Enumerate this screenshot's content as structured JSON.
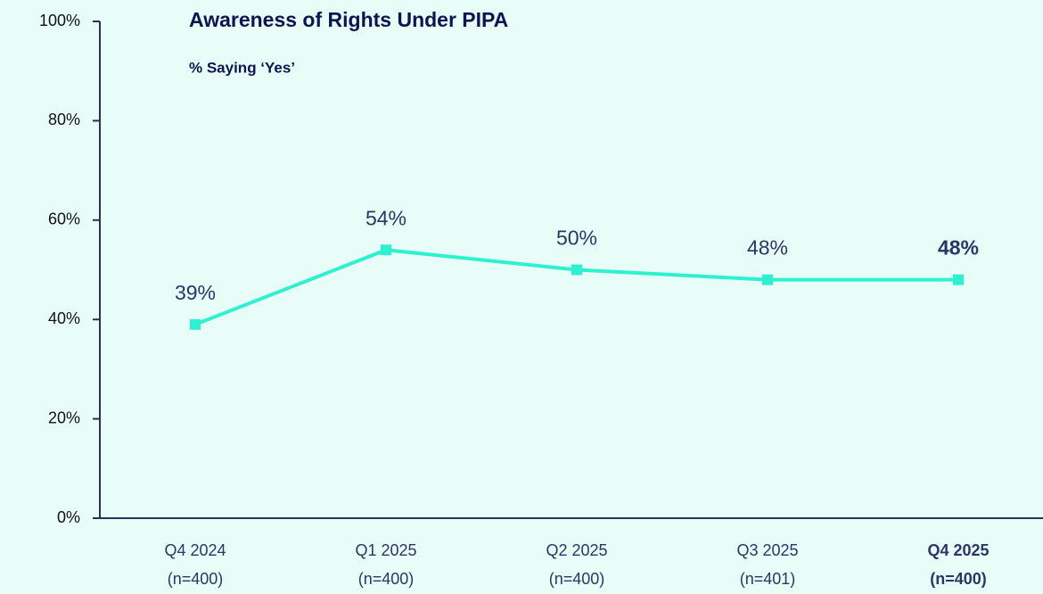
{
  "chart_data": {
    "type": "line",
    "title": "Awareness of Rights Under PIPA",
    "subtitle": "% Saying ‘Yes’",
    "categories": [
      [
        "Q4 2024",
        "(n=400)"
      ],
      [
        "Q1 2025",
        "(n=400)"
      ],
      [
        "Q2 2025",
        "(n=400)"
      ],
      [
        "Q3 2025",
        "(n=401)"
      ],
      [
        "Q4 2025",
        "(n=400)"
      ]
    ],
    "series": [
      {
        "color": "#2ef2cf",
        "values": [
          39,
          54,
          50,
          48,
          48
        ],
        "value_labels": [
          "39%",
          "54%",
          "50%",
          "48%",
          "48%"
        ]
      }
    ],
    "highlight_index": 4,
    "ylim": [
      0,
      100
    ],
    "yticks": [
      {
        "value": 0,
        "label": "0%"
      },
      {
        "value": 20,
        "label": "20%"
      },
      {
        "value": 40,
        "label": "40%"
      },
      {
        "value": 60,
        "label": "60%"
      },
      {
        "value": 80,
        "label": "80%"
      },
      {
        "value": 100,
        "label": "100%"
      }
    ],
    "grid": false
  }
}
